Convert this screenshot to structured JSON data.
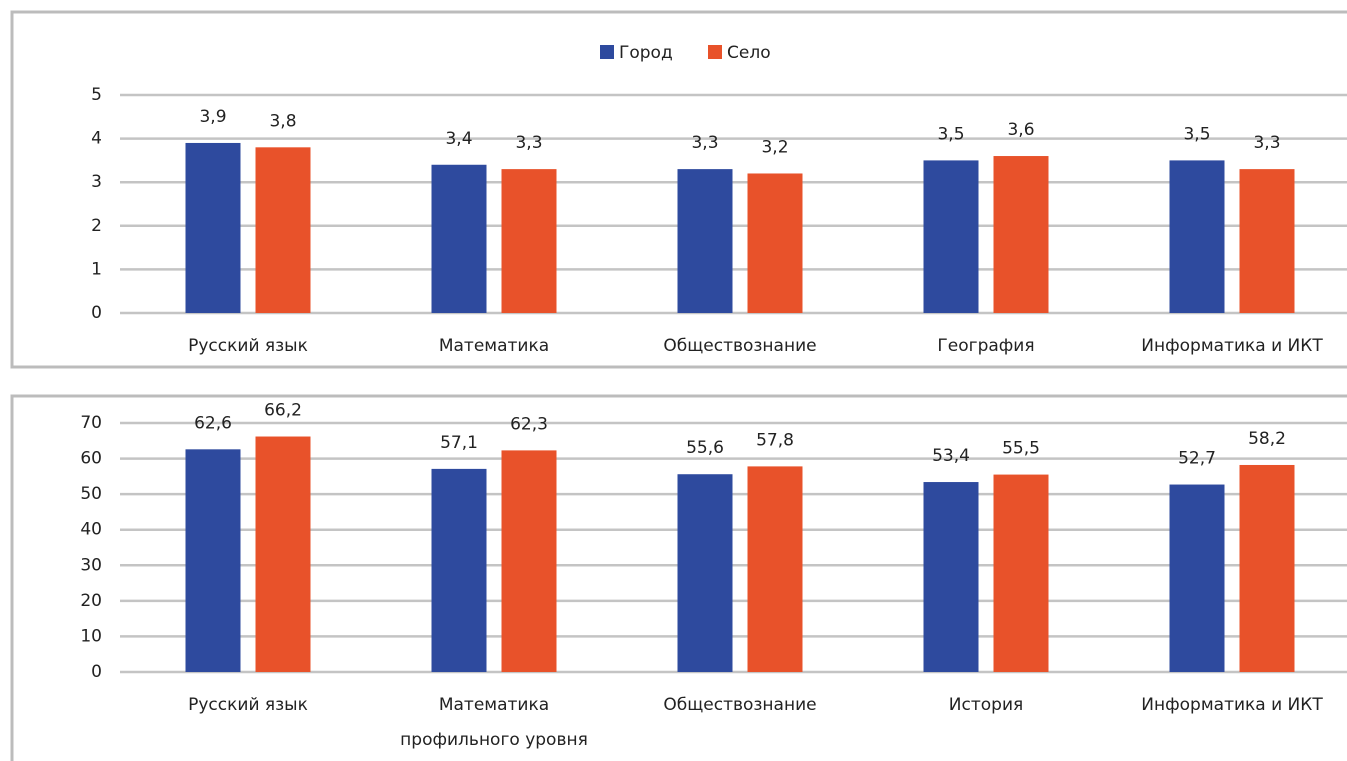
{
  "chart_data": [
    {
      "type": "bar",
      "legend": "top",
      "grid": true,
      "categories": [
        "Русский язык",
        "Математика",
        "Обществознание",
        "География",
        "Информатика и ИКТ"
      ],
      "series": [
        {
          "name": "Город",
          "color": "#2e4a9e",
          "values": [
            3.9,
            3.4,
            3.3,
            3.5,
            3.5
          ],
          "value_labels": [
            "3,9",
            "3,4",
            "3,3",
            "3,5",
            "3,5"
          ]
        },
        {
          "name": "Село",
          "color": "#e8522a",
          "values": [
            3.8,
            3.3,
            3.2,
            3.6,
            3.3
          ],
          "value_labels": [
            "3,8",
            "3,3",
            "3,2",
            "3,6",
            "3,3"
          ]
        }
      ],
      "ylim": [
        0,
        5
      ],
      "yticks": [
        0,
        1,
        2,
        3,
        4,
        5
      ]
    },
    {
      "type": "bar",
      "grid": true,
      "categories": [
        "Русский язык",
        "Математика профильного уровня",
        "Обществознание",
        "История",
        "Информатика и ИКТ"
      ],
      "series": [
        {
          "color": "#2e4a9e",
          "values": [
            62.6,
            57.1,
            55.6,
            53.4,
            52.7
          ],
          "value_labels": [
            "62,6",
            "57,1",
            "55,6",
            "53,4",
            "52,7"
          ]
        },
        {
          "color": "#e8522a",
          "values": [
            66.2,
            62.3,
            57.8,
            55.5,
            58.2
          ],
          "value_labels": [
            "66,2",
            "62,3",
            "57,8",
            "55,5",
            "58,2"
          ]
        }
      ],
      "ylim": [
        0,
        70
      ],
      "yticks": [
        0,
        10,
        20,
        30,
        40,
        50,
        60,
        70
      ]
    }
  ]
}
